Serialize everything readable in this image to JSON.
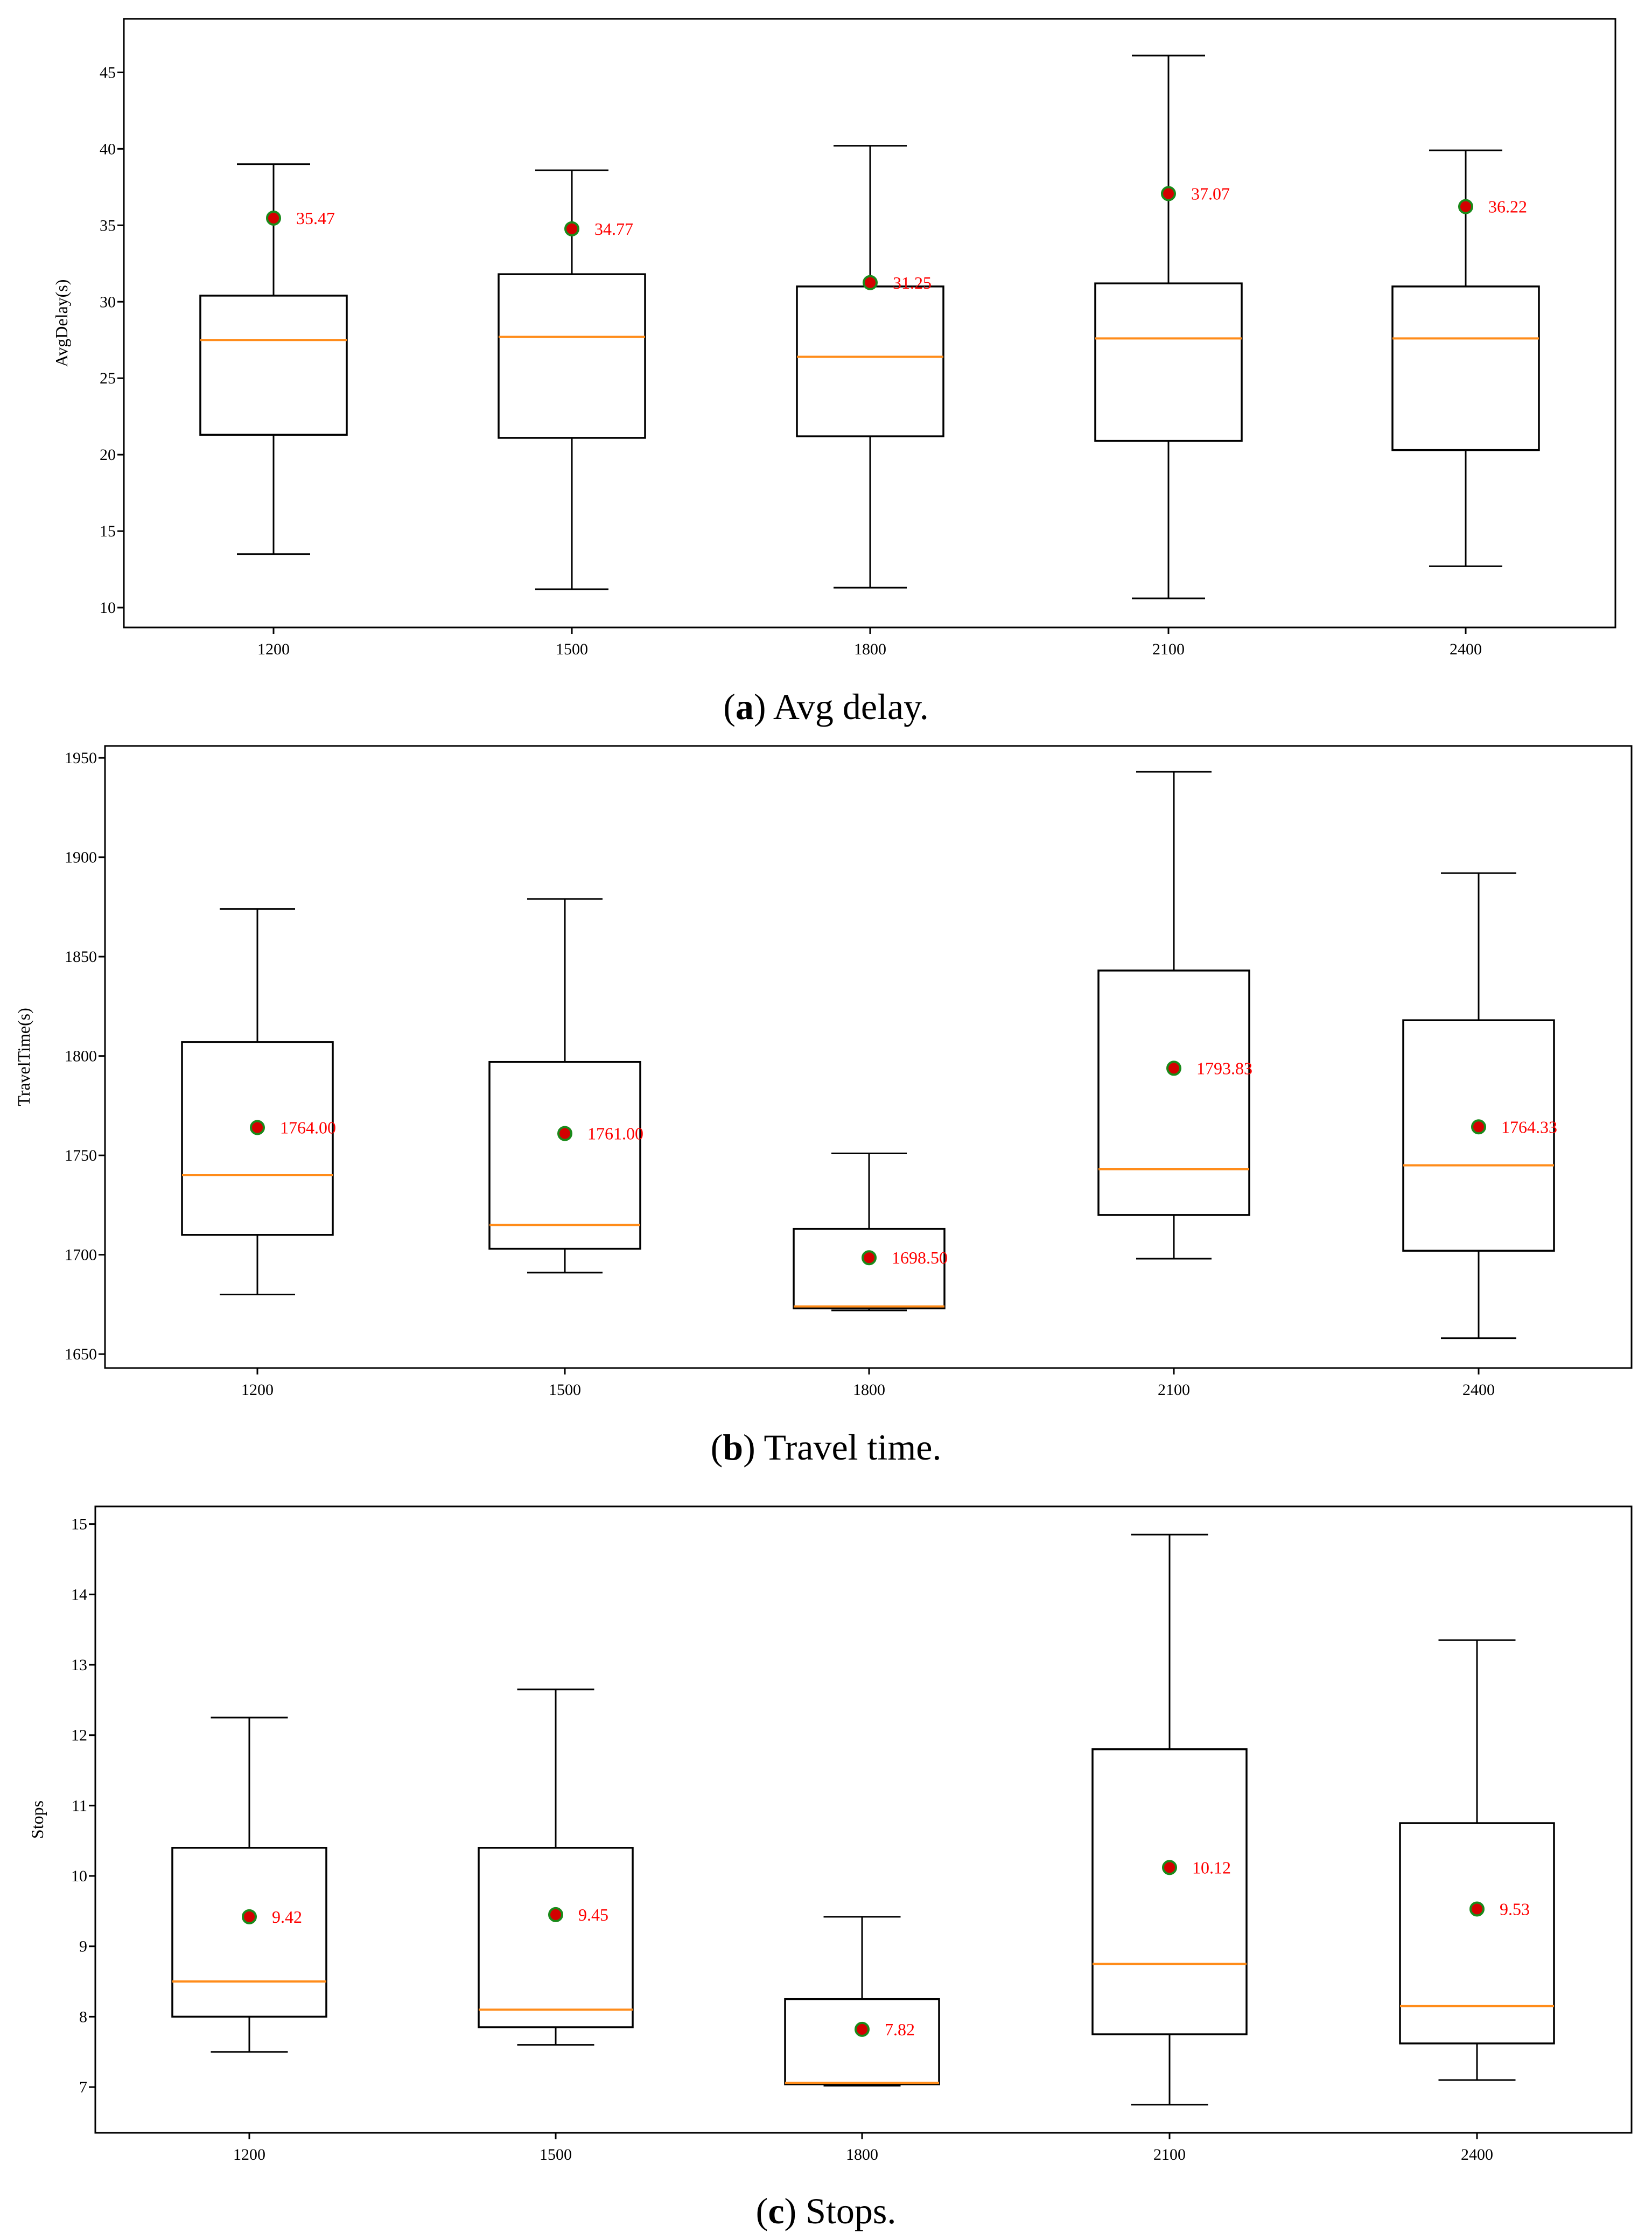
{
  "colors": {
    "median": "#ff8c1a",
    "mean_fill": "#d40000",
    "mean_edge": "#1a8a1a",
    "mean_label": "#ff0000",
    "box": "#000000"
  },
  "chart_data": [
    {
      "type": "box",
      "caption_letter": "a",
      "caption_text": "Avg delay.",
      "ylabel": "AvgDelay(s)",
      "xlabel": "",
      "categories": [
        "1200",
        "1500",
        "1800",
        "2100",
        "2400"
      ],
      "yticks": [
        "10",
        "15",
        "20",
        "25",
        "30",
        "35",
        "40",
        "45"
      ],
      "ylim": [
        8.7,
        48.5
      ],
      "boxes": [
        {
          "whisker_low": 13.5,
          "q1": 21.3,
          "median": 27.5,
          "q3": 30.4,
          "whisker_high": 39.0,
          "mean": 35.47
        },
        {
          "whisker_low": 11.2,
          "q1": 21.1,
          "median": 27.7,
          "q3": 31.8,
          "whisker_high": 38.6,
          "mean": 34.77
        },
        {
          "whisker_low": 11.3,
          "q1": 21.2,
          "median": 26.4,
          "q3": 31.0,
          "whisker_high": 40.2,
          "mean": 31.25
        },
        {
          "whisker_low": 10.6,
          "q1": 20.9,
          "median": 27.6,
          "q3": 31.2,
          "whisker_high": 46.1,
          "mean": 37.07
        },
        {
          "whisker_low": 12.7,
          "q1": 20.3,
          "median": 27.6,
          "q3": 31.0,
          "whisker_high": 39.9,
          "mean": 36.22
        }
      ],
      "mean_labels": [
        "35.47",
        "34.77",
        "31.25",
        "37.07",
        "36.22"
      ]
    },
    {
      "type": "box",
      "caption_letter": "b",
      "caption_text": "Travel time.",
      "ylabel": "TravelTime(s)",
      "xlabel": "",
      "categories": [
        "1200",
        "1500",
        "1800",
        "2100",
        "2400"
      ],
      "yticks": [
        "1650",
        "1700",
        "1750",
        "1800",
        "1850",
        "1900",
        "1950"
      ],
      "ylim": [
        1643,
        1956
      ],
      "boxes": [
        {
          "whisker_low": 1680,
          "q1": 1710,
          "median": 1740,
          "q3": 1807,
          "whisker_high": 1874,
          "mean": 1764.0
        },
        {
          "whisker_low": 1691,
          "q1": 1703,
          "median": 1715,
          "q3": 1797,
          "whisker_high": 1879,
          "mean": 1761.0
        },
        {
          "whisker_low": 1672,
          "q1": 1673,
          "median": 1674,
          "q3": 1713,
          "whisker_high": 1751,
          "mean": 1698.5
        },
        {
          "whisker_low": 1698,
          "q1": 1720,
          "median": 1743,
          "q3": 1843,
          "whisker_high": 1943,
          "mean": 1793.83
        },
        {
          "whisker_low": 1658,
          "q1": 1702,
          "median": 1745,
          "q3": 1818,
          "whisker_high": 1892,
          "mean": 1764.33
        }
      ],
      "mean_labels": [
        "1764.00",
        "1761.00",
        "1698.50",
        "1793.83",
        "1764.33"
      ]
    },
    {
      "type": "box",
      "caption_letter": "c",
      "caption_text": "Stops.",
      "ylabel": "Stops",
      "xlabel": "",
      "categories": [
        "1200",
        "1500",
        "1800",
        "2100",
        "2400"
      ],
      "yticks": [
        "7",
        "8",
        "9",
        "10",
        "11",
        "12",
        "13",
        "14",
        "15"
      ],
      "ylim": [
        6.35,
        15.25
      ],
      "boxes": [
        {
          "whisker_low": 7.5,
          "q1": 8.0,
          "median": 8.5,
          "q3": 10.4,
          "whisker_high": 12.25,
          "mean": 9.42
        },
        {
          "whisker_low": 7.6,
          "q1": 7.85,
          "median": 8.1,
          "q3": 10.4,
          "whisker_high": 12.65,
          "mean": 9.45
        },
        {
          "whisker_low": 7.02,
          "q1": 7.04,
          "median": 7.06,
          "q3": 8.25,
          "whisker_high": 9.42,
          "mean": 7.82
        },
        {
          "whisker_low": 6.75,
          "q1": 7.75,
          "median": 8.75,
          "q3": 11.8,
          "whisker_high": 14.85,
          "mean": 10.12
        },
        {
          "whisker_low": 7.1,
          "q1": 7.62,
          "median": 8.15,
          "q3": 10.75,
          "whisker_high": 13.35,
          "mean": 9.53
        }
      ],
      "mean_labels": [
        "9.42",
        "9.45",
        "7.82",
        "10.12",
        "9.53"
      ]
    }
  ]
}
